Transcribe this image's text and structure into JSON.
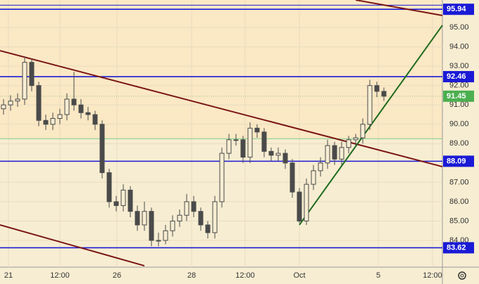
{
  "chart_data": {
    "type": "candlestick",
    "xlim": [
      0,
      62.8
    ],
    "ylim": [
      82.62,
      96.42
    ],
    "xticks": [
      {
        "value": 1.2,
        "label": "21"
      },
      {
        "value": 8.5,
        "label": "12:00"
      },
      {
        "value": 16.6,
        "label": "26"
      },
      {
        "value": 27.2,
        "label": "28"
      },
      {
        "value": 34.8,
        "label": "12:00"
      },
      {
        "value": 42.5,
        "label": "Oct"
      },
      {
        "value": 53.7,
        "label": "5"
      },
      {
        "value": 61.4,
        "label": "12:00"
      }
    ],
    "yticks": [
      {
        "value": 95,
        "label": "95.00"
      },
      {
        "value": 94,
        "label": "94.00"
      },
      {
        "value": 93,
        "label": "93.00"
      },
      {
        "value": 92,
        "label": "92.00"
      },
      {
        "value": 91,
        "label": "91.00"
      },
      {
        "value": 90,
        "label": "90.00"
      },
      {
        "value": 89,
        "label": "89.00"
      },
      {
        "value": 87,
        "label": "87.00"
      },
      {
        "value": 86,
        "label": "86.00"
      },
      {
        "value": 85,
        "label": "85.00"
      },
      {
        "value": 84,
        "label": "84.00"
      }
    ],
    "candle_color": "#4a4a4a",
    "x": [
      0.5,
      1.5,
      2.5,
      3.5,
      4.5,
      5.5,
      6.5,
      7.5,
      8.5,
      9.5,
      10.5,
      11.5,
      12.5,
      13.5,
      14.5,
      15.5,
      16.5,
      17.5,
      18.5,
      19.5,
      20.5,
      21.5,
      22.5,
      23.5,
      24.5,
      25.5,
      26.5,
      27.5,
      28.5,
      29.5,
      30.5,
      31.5,
      32.5,
      33.5,
      34.5,
      35.5,
      36.5,
      37.5,
      38.5,
      39.5,
      40.5,
      41.5,
      42.5,
      43.5,
      44.5,
      45.5,
      46.5,
      47.5,
      48.5,
      49.5,
      50.5,
      51.5,
      52.5,
      53.5,
      54.5
    ],
    "open": [
      90.8,
      91.0,
      91.2,
      91.3,
      93.2,
      92.0,
      90.2,
      90.0,
      90.3,
      90.5,
      91.3,
      91.0,
      90.6,
      90.5,
      90.0,
      87.5,
      86.0,
      85.8,
      86.6,
      85.5,
      84.8,
      85.5,
      84.0,
      84.0,
      84.5,
      85.0,
      85.3,
      86.0,
      85.5,
      84.8,
      84.4,
      86.0,
      88.5,
      89.2,
      89.2,
      88.3,
      89.8,
      89.6,
      88.6,
      88.4,
      88.5,
      88.0,
      86.5,
      85.0,
      86.9,
      87.6,
      88.0,
      88.9,
      88.2,
      88.8,
      89.2,
      89.3,
      90.0,
      92.0,
      91.7
    ],
    "high": [
      91.3,
      91.5,
      91.6,
      93.5,
      93.4,
      92.2,
      90.5,
      90.6,
      90.8,
      91.6,
      92.7,
      91.3,
      90.9,
      90.7,
      90.2,
      87.7,
      86.3,
      86.9,
      86.8,
      85.8,
      86.0,
      85.7,
      84.4,
      84.8,
      85.3,
      85.6,
      86.4,
      86.3,
      85.7,
      85.0,
      86.3,
      88.8,
      89.5,
      89.5,
      89.4,
      90.1,
      90.0,
      89.8,
      88.8,
      88.8,
      88.7,
      88.2,
      86.7,
      87.2,
      87.9,
      88.3,
      89.2,
      89.1,
      89.1,
      89.4,
      89.5,
      90.3,
      92.3,
      92.2,
      91.9
    ],
    "low": [
      90.5,
      90.7,
      90.9,
      91.0,
      91.7,
      89.9,
      89.7,
      89.7,
      90.0,
      90.2,
      90.7,
      90.3,
      90.2,
      89.7,
      87.2,
      85.7,
      85.5,
      85.5,
      85.2,
      84.5,
      84.5,
      83.7,
      83.7,
      83.8,
      84.2,
      84.7,
      85.0,
      85.2,
      84.5,
      84.1,
      84.1,
      85.7,
      88.2,
      88.9,
      88.0,
      88.0,
      89.3,
      88.3,
      88.1,
      88.1,
      87.7,
      86.2,
      84.9,
      84.8,
      86.6,
      87.3,
      87.7,
      87.9,
      87.9,
      88.5,
      88.9,
      89.0,
      89.7,
      91.4,
      91.2
    ],
    "close": [
      91.0,
      91.2,
      91.3,
      93.2,
      92.0,
      90.2,
      90.0,
      90.3,
      90.5,
      91.3,
      91.0,
      90.6,
      90.5,
      90.0,
      87.5,
      86.0,
      85.8,
      86.6,
      85.5,
      84.8,
      85.5,
      84.0,
      84.0,
      84.5,
      85.0,
      85.3,
      86.0,
      85.5,
      84.8,
      84.4,
      86.0,
      88.5,
      89.2,
      89.2,
      88.3,
      89.8,
      89.6,
      88.6,
      88.4,
      88.5,
      88.0,
      86.5,
      85.0,
      86.9,
      87.6,
      88.0,
      88.9,
      88.2,
      88.8,
      89.2,
      89.3,
      90.0,
      92.0,
      91.7,
      91.45
    ],
    "levels": [
      {
        "value": 96.15,
        "color": "#1a1ad6"
      },
      {
        "value": 95.94,
        "label": "95.94",
        "color": "#1a1ad6"
      },
      {
        "value": 92.46,
        "label": "92.46",
        "color": "#1a1ad6"
      },
      {
        "value": 91.45,
        "label": "91.45",
        "color": "#4caf50",
        "dashed": true
      },
      {
        "value": 89.25,
        "color": "#7fd08a"
      },
      {
        "value": 88.09,
        "label": "88.09",
        "color": "#1a1ad6"
      },
      {
        "value": 83.62,
        "label": "83.62",
        "color": "#1a1ad6"
      }
    ],
    "trendlines": [
      {
        "color": "#7a1515",
        "x": [
          0,
          62.8
        ],
        "y": [
          93.8,
          87.81
        ]
      },
      {
        "color": "#7a1515",
        "x": [
          50.5,
          62.8
        ],
        "y": [
          96.42,
          95.62
        ]
      },
      {
        "color": "#7a1515",
        "x": [
          0,
          20.5
        ],
        "y": [
          84.8,
          82.69
        ]
      },
      {
        "color": "#1e6b1e",
        "x": [
          42.5,
          62.8
        ],
        "y": [
          84.8,
          95.11
        ]
      }
    ]
  }
}
